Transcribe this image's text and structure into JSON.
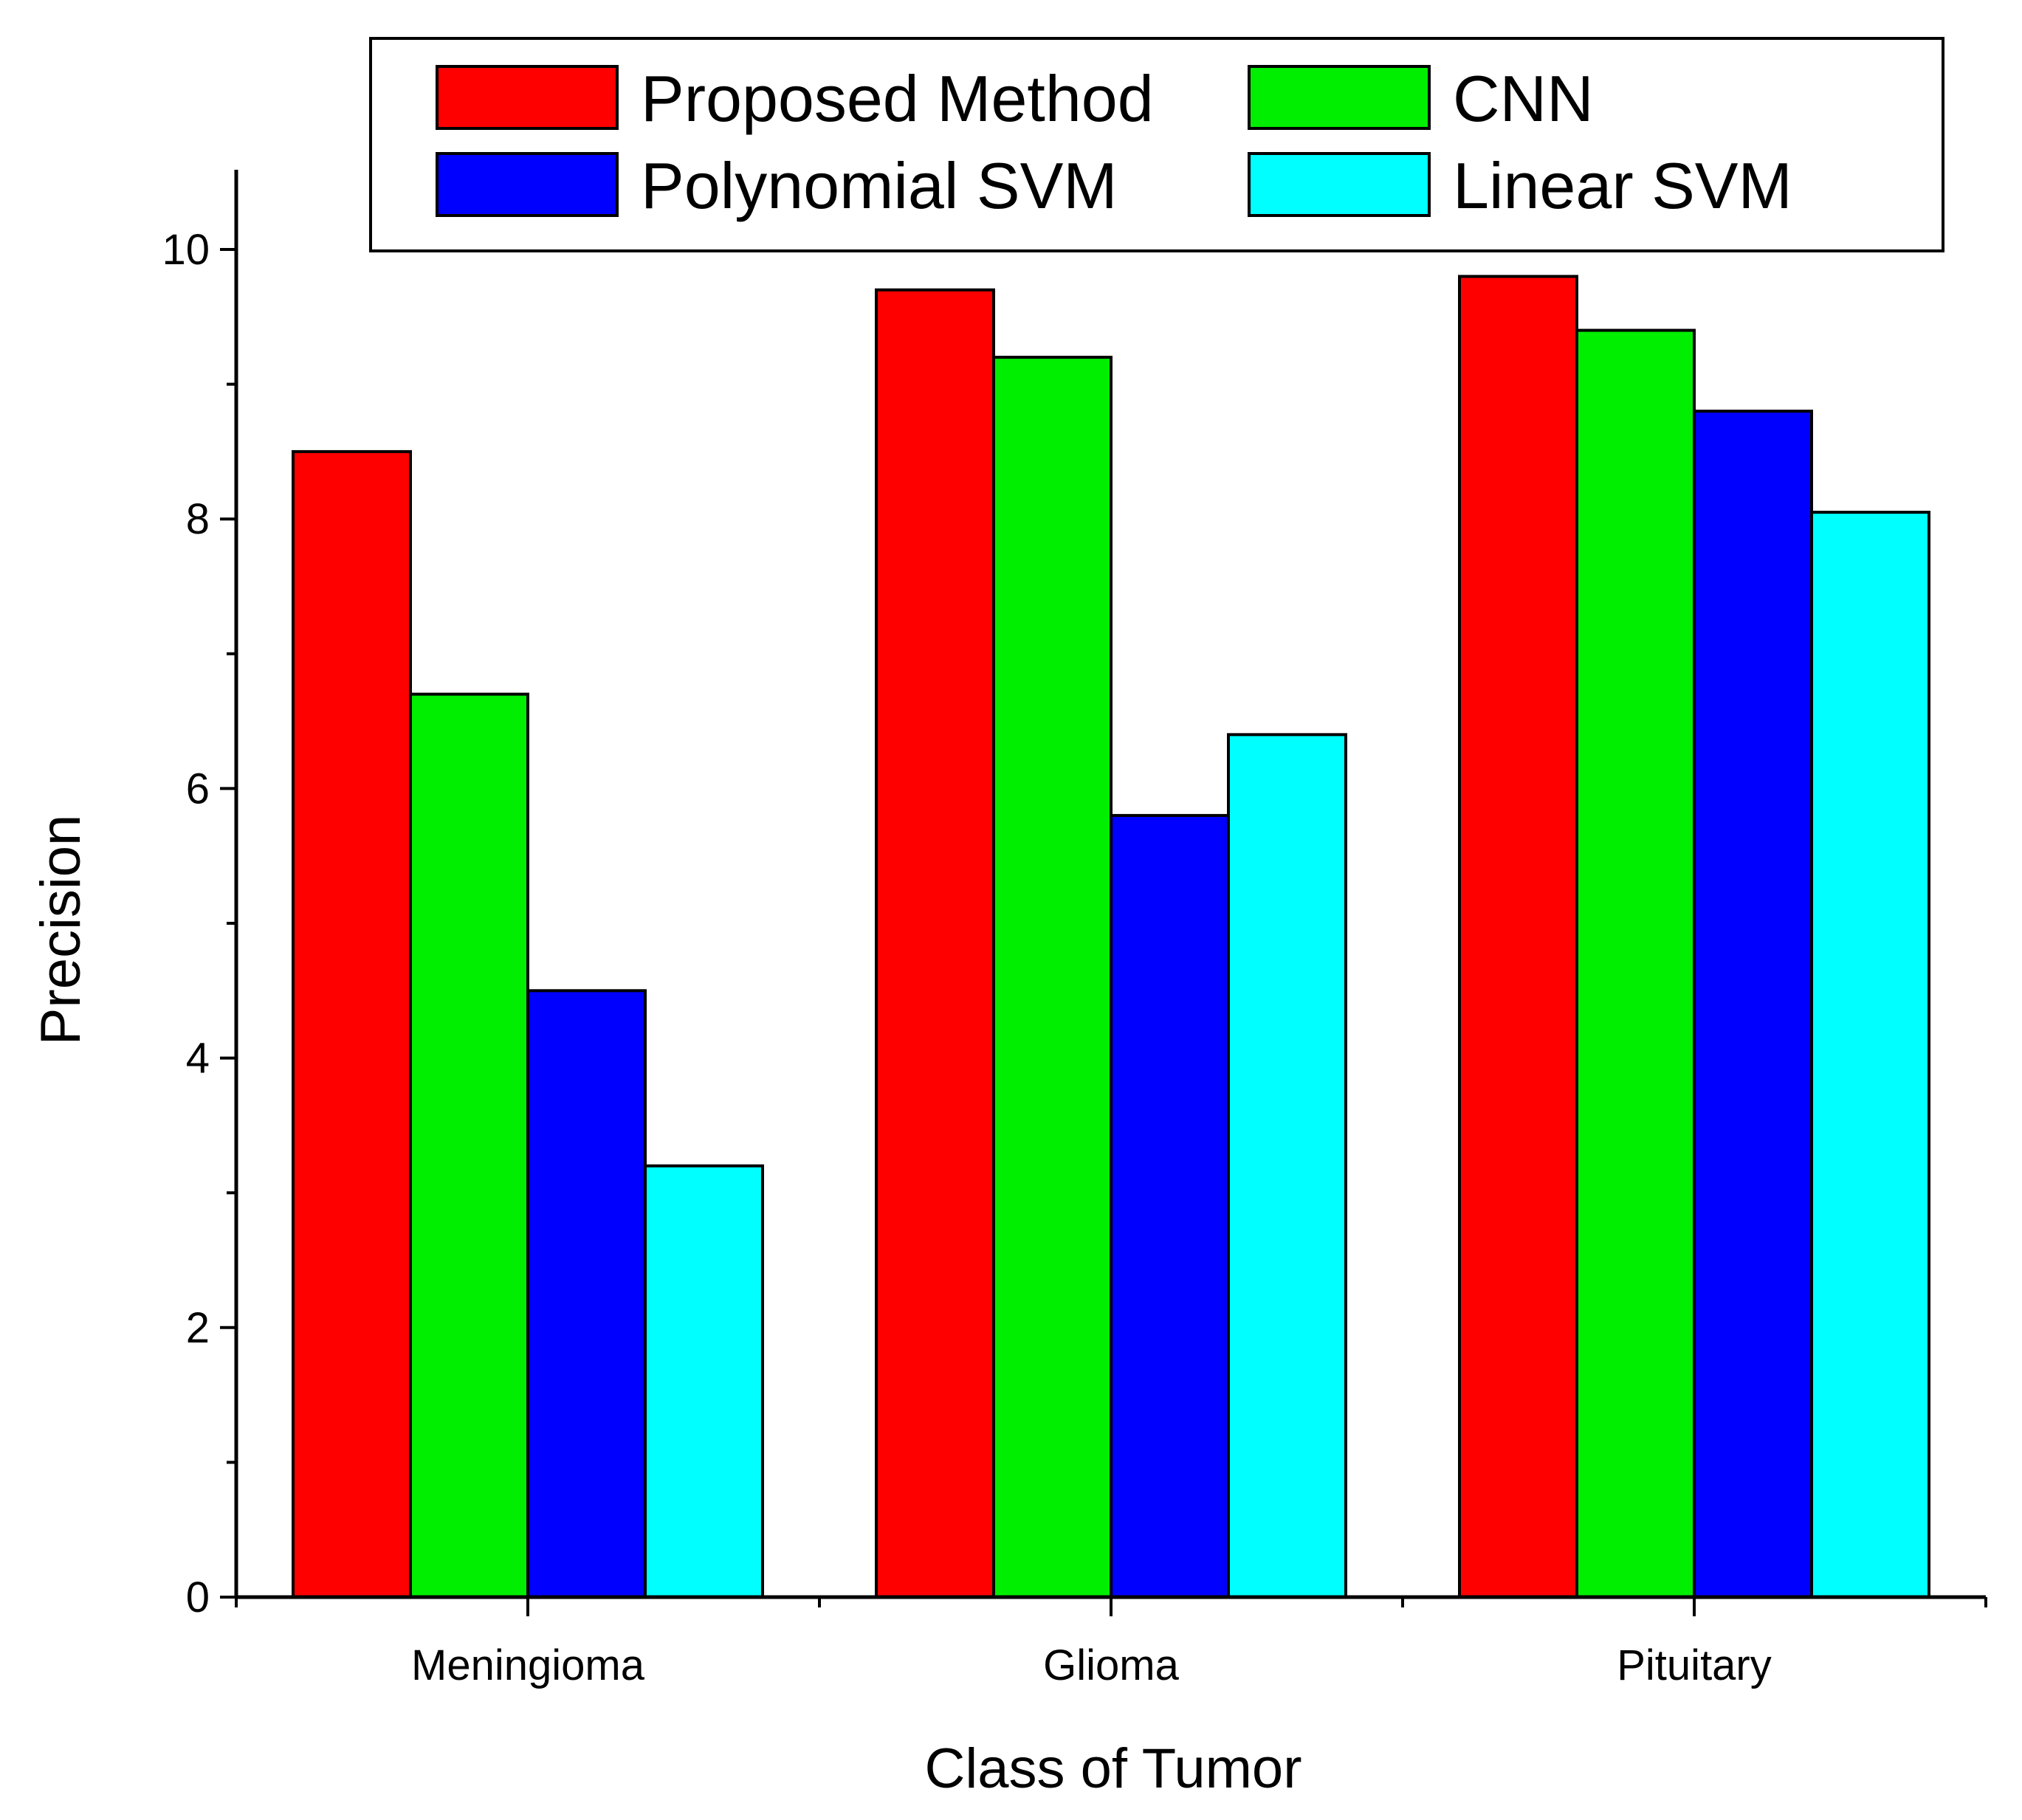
{
  "chart_data": {
    "type": "bar",
    "categories": [
      "Meningioma",
      "Glioma",
      "Pituitary"
    ],
    "series": [
      {
        "name": "Proposed Method",
        "color": "#ff0000",
        "values": [
          8.5,
          9.7,
          9.8
        ]
      },
      {
        "name": "CNN",
        "color": "#00ee00",
        "values": [
          6.7,
          9.2,
          9.4
        ]
      },
      {
        "name": "Polynomial SVM",
        "color": "#0000ff",
        "values": [
          4.5,
          5.8,
          8.8
        ]
      },
      {
        "name": "Linear SVM",
        "color": "#00ffff",
        "values": [
          3.2,
          6.4,
          8.05
        ]
      }
    ],
    "xlabel": "Class of Tumor",
    "ylabel": "Precision",
    "ylim": [
      0,
      10.6
    ],
    "yticks": [
      0,
      2,
      4,
      6,
      8,
      10
    ],
    "legend_position": "top",
    "grid": false
  }
}
